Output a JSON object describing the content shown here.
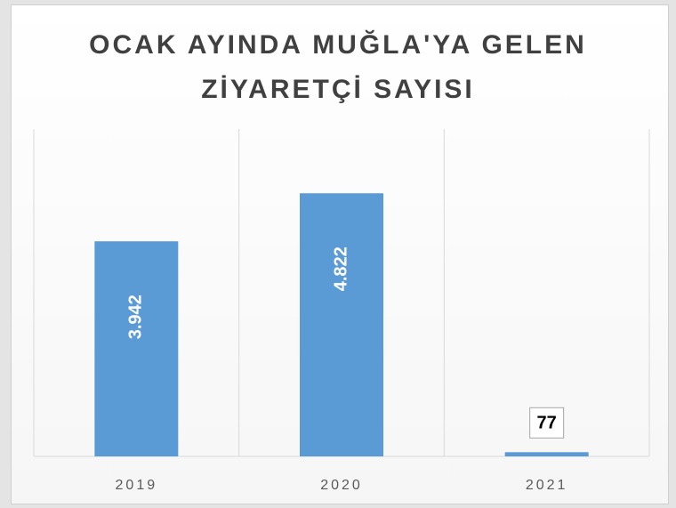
{
  "chart_data": {
    "type": "bar",
    "title": "OCAK AYINDA MUĞLA'YA GELEN ZİYARETÇİ SAYISI",
    "categories": [
      "2019",
      "2020",
      "2021"
    ],
    "values": [
      3942,
      4822,
      77
    ],
    "value_labels": [
      "3.942",
      "4.822",
      "77"
    ],
    "color": "#5b9bd5",
    "ylim": [
      0,
      6000
    ],
    "grid": true
  }
}
